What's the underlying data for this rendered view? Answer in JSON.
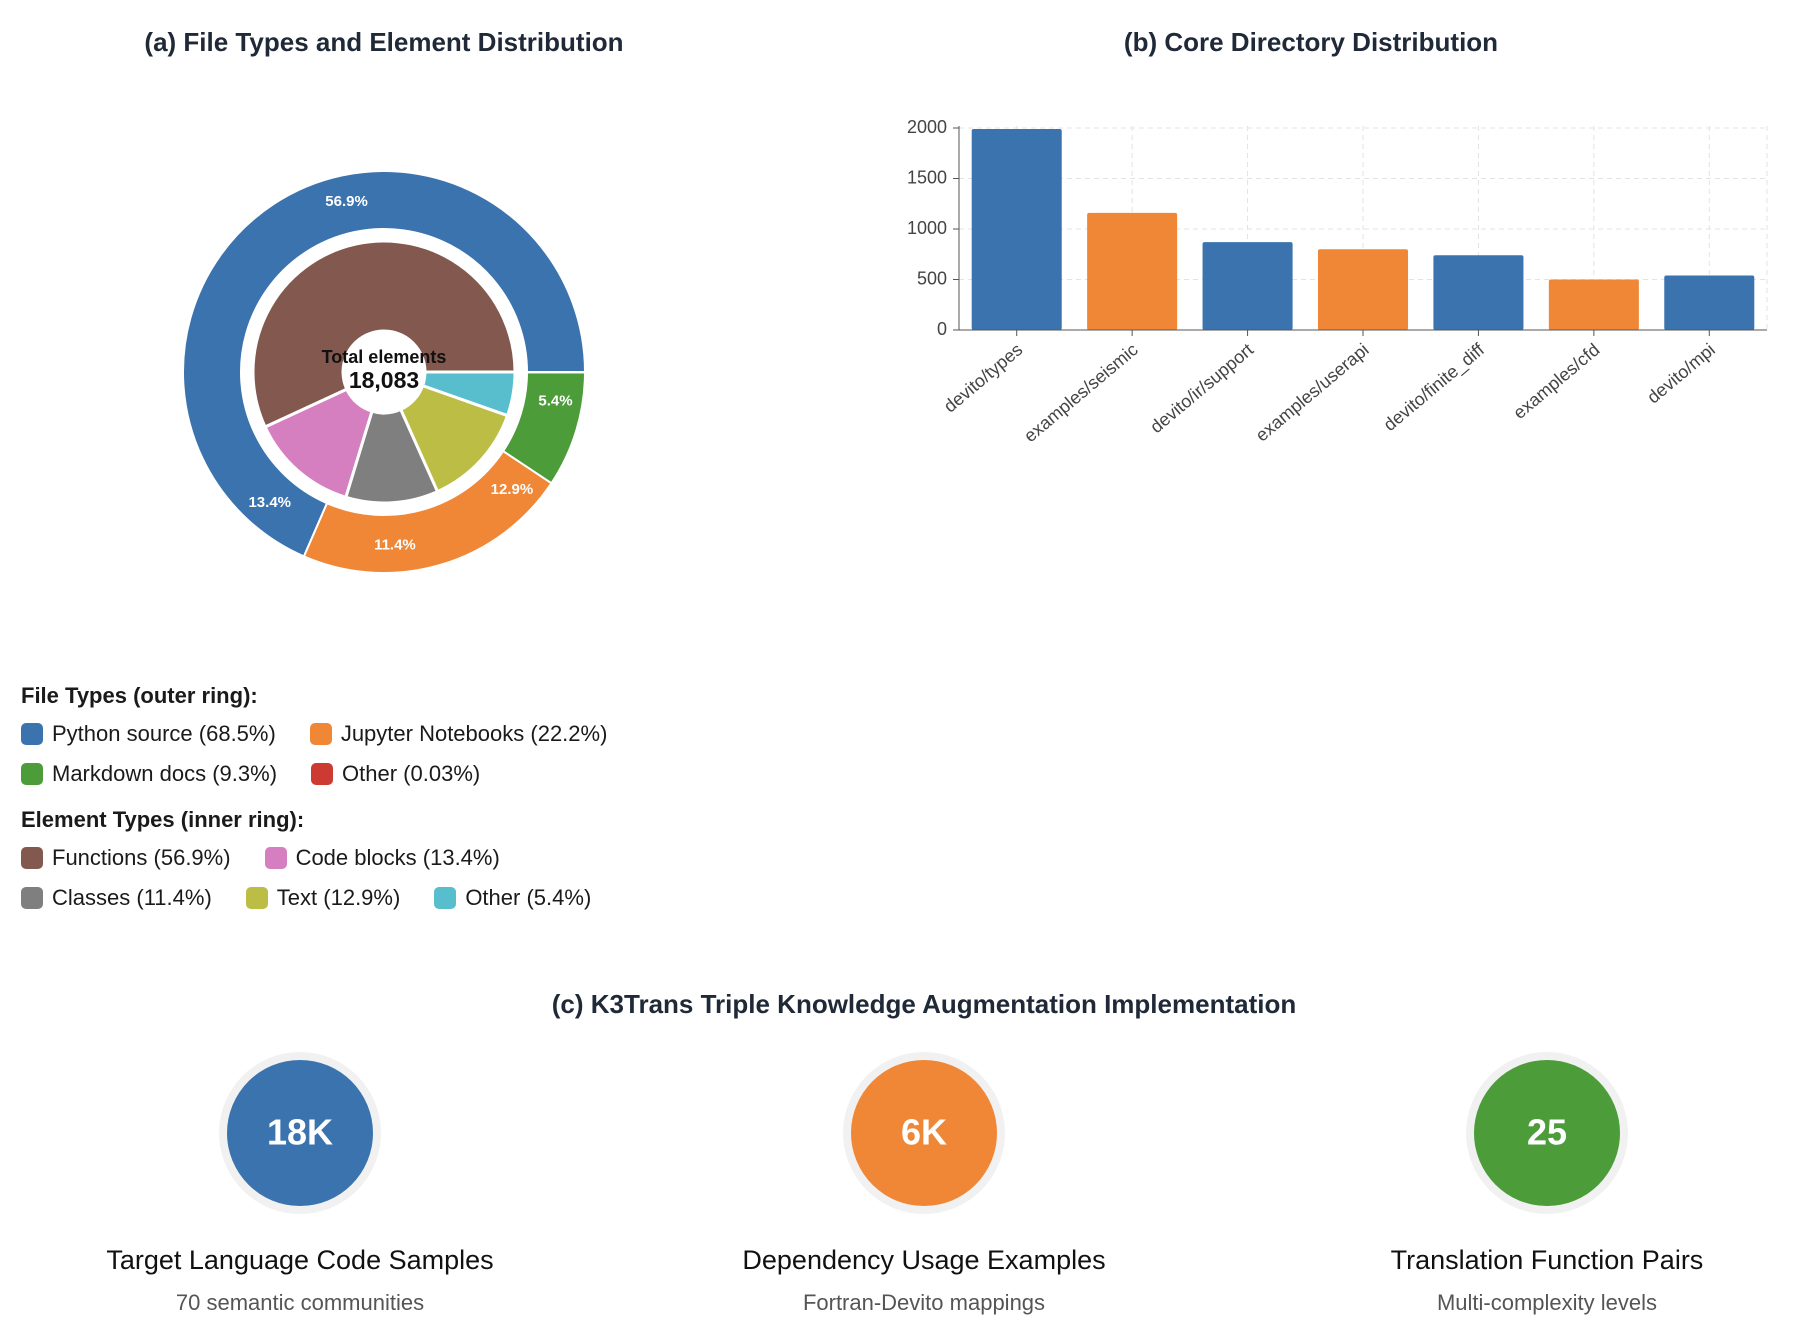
{
  "chart_data": [
    {
      "type": "donut",
      "title": "(a) File Types and Element Distribution",
      "center_title": "Total elements",
      "center_value": "18,083",
      "series": [
        {
          "name": "File Types (outer ring):",
          "categories": [
            "Python source",
            "Jupyter Notebooks",
            "Markdown docs",
            "Other"
          ],
          "values": [
            68.5,
            22.2,
            9.3,
            0.03
          ],
          "value_labels": [
            "68.5%",
            "22.2%",
            "9.3%",
            "0.03%"
          ],
          "colors": [
            "#3b73ae",
            "#ef8737",
            "#4c9c3a",
            "#cc3a32"
          ]
        },
        {
          "name": "Element Types (inner ring):",
          "categories": [
            "Functions",
            "Code blocks",
            "Classes",
            "Text",
            "Other"
          ],
          "values": [
            56.9,
            13.4,
            11.4,
            12.9,
            5.4
          ],
          "value_labels": [
            "56.9%",
            "13.4%",
            "11.4%",
            "12.9%",
            "5.4%"
          ],
          "colors": [
            "#83584e",
            "#d57ec0",
            "#7f7f7f",
            "#bcbd45",
            "#58bdcd"
          ]
        }
      ]
    },
    {
      "type": "bar",
      "title": "(b) Core Directory Distribution",
      "categories": [
        "devito/types",
        "examples/seismic",
        "devito/ir/support",
        "examples/userapi",
        "devito/finite_diff",
        "examples/cfd",
        "devito/mpi"
      ],
      "values": [
        1990,
        1160,
        870,
        800,
        740,
        500,
        540
      ],
      "colors": [
        "#3b73ae",
        "#ef8737",
        "#3b73ae",
        "#ef8737",
        "#3b73ae",
        "#ef8737",
        "#3b73ae"
      ],
      "ylim": [
        0,
        2000
      ],
      "yticks": [
        0,
        500,
        1000,
        1500,
        2000
      ],
      "grid": true
    }
  ],
  "section_c": {
    "title": "(c) K3Trans Triple Knowledge Augmentation Implementation",
    "items": [
      {
        "value": "18K",
        "title": "Target Language Code Samples",
        "subtitle": "70 semantic communities",
        "color": "#3b73ae"
      },
      {
        "value": "6K",
        "title": "Dependency Usage Examples",
        "subtitle": "Fortran-Devito mappings",
        "color": "#ef8737"
      },
      {
        "value": "25",
        "title": "Translation Function Pairs",
        "subtitle": "Multi-complexity levels",
        "color": "#4c9c3a"
      }
    ]
  }
}
